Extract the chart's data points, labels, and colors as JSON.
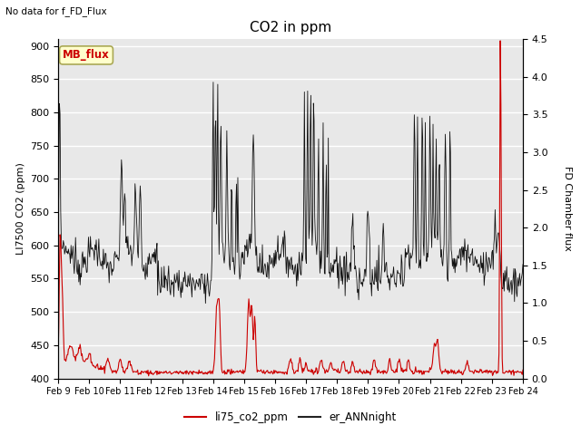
{
  "title": "CO2 in ppm",
  "top_left_text": "No data for f_FD_Flux",
  "ylabel_left": "LI7500 CO2 (ppm)",
  "ylabel_right": "FD Chamber flux",
  "ylim_left": [
    400,
    910
  ],
  "ylim_right": [
    0.0,
    4.5
  ],
  "yticks_left": [
    400,
    450,
    500,
    550,
    600,
    650,
    700,
    750,
    800,
    850,
    900
  ],
  "yticks_right": [
    0.0,
    0.5,
    1.0,
    1.5,
    2.0,
    2.5,
    3.0,
    3.5,
    4.0,
    4.5
  ],
  "xticklabels": [
    "Feb 9",
    "Feb 10",
    "Feb 11",
    "Feb 12",
    "Feb 13",
    "Feb 14",
    "Feb 15",
    "Feb 16",
    "Feb 17",
    "Feb 18",
    "Feb 19",
    "Feb 20",
    "Feb 21",
    "Feb 22",
    "Feb 23",
    "Feb 24"
  ],
  "legend_labels": [
    "li75_co2_ppm",
    "er_ANNnight"
  ],
  "legend_colors": [
    "#cc0000",
    "#222222"
  ],
  "line1_color": "#cc0000",
  "line2_color": "#111111",
  "plot_bg": "#e8e8e8",
  "fig_bg": "#ffffff",
  "grid_color": "#ffffff",
  "annotation_box_text": "MB_flux",
  "annotation_box_color": "#cc0000",
  "annotation_box_bg": "#ffffcc",
  "annotation_box_edge": "#aaa855"
}
